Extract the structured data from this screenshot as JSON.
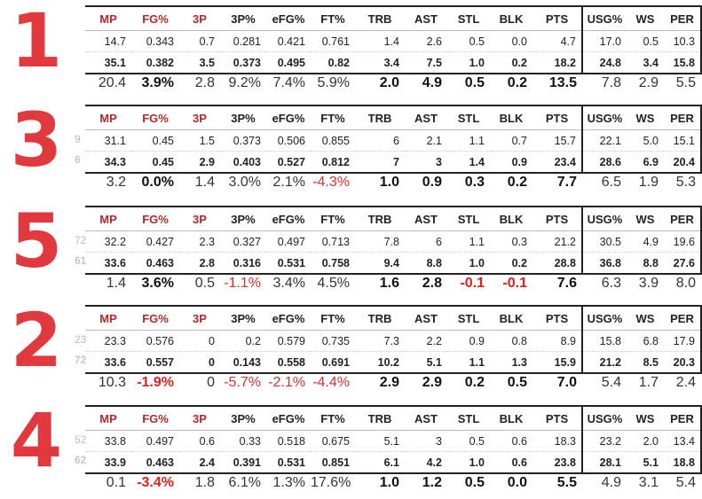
{
  "columns": [
    "MP",
    "FG%",
    "3P",
    "3P%",
    "eFG%",
    "FT%",
    "TRB",
    "AST",
    "STL",
    "BLK",
    "PTS",
    "USG%",
    "WS",
    "PER"
  ],
  "blocks": [
    {
      "rank": "1",
      "stub1": "",
      "stub2": "",
      "row1": [
        "14.7",
        "0.343",
        "0.7",
        "0.281",
        "0.421",
        "0.761",
        "1.4",
        "2.6",
        "0.5",
        "0.0",
        "4.7",
        "17.0",
        "0.5",
        "10.3"
      ],
      "row2": [
        "35.1",
        "0.382",
        "3.5",
        "0.373",
        "0.495",
        "0.82",
        "3.4",
        "7.5",
        "1.0",
        "0.2",
        "18.2",
        "24.8",
        "3.4",
        "15.8"
      ],
      "diff": [
        "20.4",
        "3.9%",
        "2.8",
        "9.2%",
        "7.4%",
        "5.9%",
        "2.0",
        "4.9",
        "0.5",
        "0.2",
        "13.5",
        "7.8",
        "2.9",
        "5.5"
      ]
    },
    {
      "rank": "3",
      "stub1": "9",
      "stub2": "6",
      "row1": [
        "31.1",
        "0.45",
        "1.5",
        "0.373",
        "0.506",
        "0.855",
        "6",
        "2.1",
        "1.1",
        "0.7",
        "15.7",
        "22.1",
        "5.0",
        "15.1"
      ],
      "row2": [
        "34.3",
        "0.45",
        "2.9",
        "0.403",
        "0.527",
        "0.812",
        "7",
        "3",
        "1.4",
        "0.9",
        "23.4",
        "28.6",
        "6.9",
        "20.4"
      ],
      "diff": [
        "3.2",
        "0.0%",
        "1.4",
        "3.0%",
        "2.1%",
        "-4.3%",
        "1.0",
        "0.9",
        "0.3",
        "0.2",
        "7.7",
        "6.5",
        "1.9",
        "5.3"
      ]
    },
    {
      "rank": "5",
      "stub1": "72",
      "stub2": "61",
      "row1": [
        "32.2",
        "0.427",
        "2.3",
        "0.327",
        "0.497",
        "0.713",
        "7.8",
        "6",
        "1.1",
        "0.3",
        "21.2",
        "30.5",
        "4.9",
        "19.6"
      ],
      "row2": [
        "33.6",
        "0.463",
        "2.8",
        "0.316",
        "0.531",
        "0.758",
        "9.4",
        "8.8",
        "1.0",
        "0.2",
        "28.8",
        "36.8",
        "8.8",
        "27.6"
      ],
      "diff": [
        "1.4",
        "3.6%",
        "0.5",
        "-1.1%",
        "3.4%",
        "4.5%",
        "1.6",
        "2.8",
        "-0.1",
        "-0.1",
        "7.6",
        "6.3",
        "3.9",
        "8.0"
      ]
    },
    {
      "rank": "2",
      "stub1": "23",
      "stub2": "72",
      "row1": [
        "23.3",
        "0.576",
        "0",
        "0.2",
        "0.579",
        "0.735",
        "7.3",
        "2.2",
        "0.9",
        "0.8",
        "8.9",
        "15.8",
        "6.8",
        "17.9"
      ],
      "row2": [
        "33.6",
        "0.557",
        "0",
        "0.143",
        "0.558",
        "0.691",
        "10.2",
        "5.1",
        "1.1",
        "1.3",
        "15.9",
        "21.2",
        "8.5",
        "20.3"
      ],
      "diff": [
        "10.3",
        "-1.9%",
        "0",
        "-5.7%",
        "-2.1%",
        "-4.4%",
        "2.9",
        "2.9",
        "0.2",
        "0.5",
        "7.0",
        "5.4",
        "1.7",
        "2.4"
      ]
    },
    {
      "rank": "4",
      "stub1": "52",
      "stub2": "62",
      "row1": [
        "33.8",
        "0.497",
        "0.6",
        "0.33",
        "0.518",
        "0.675",
        "5.1",
        "3",
        "0.5",
        "0.6",
        "18.3",
        "23.2",
        "2.0",
        "13.4"
      ],
      "row2": [
        "33.9",
        "0.463",
        "2.4",
        "0.391",
        "0.531",
        "0.851",
        "6.1",
        "4.2",
        "1.0",
        "0.6",
        "23.8",
        "28.1",
        "5.1",
        "18.8"
      ],
      "diff": [
        "0.1",
        "-3.4%",
        "1.8",
        "6.1%",
        "1.3%",
        "17.6%",
        "1.0",
        "1.2",
        "0.5",
        "0.0",
        "5.5",
        "4.9",
        "3.1",
        "5.4"
      ]
    }
  ]
}
